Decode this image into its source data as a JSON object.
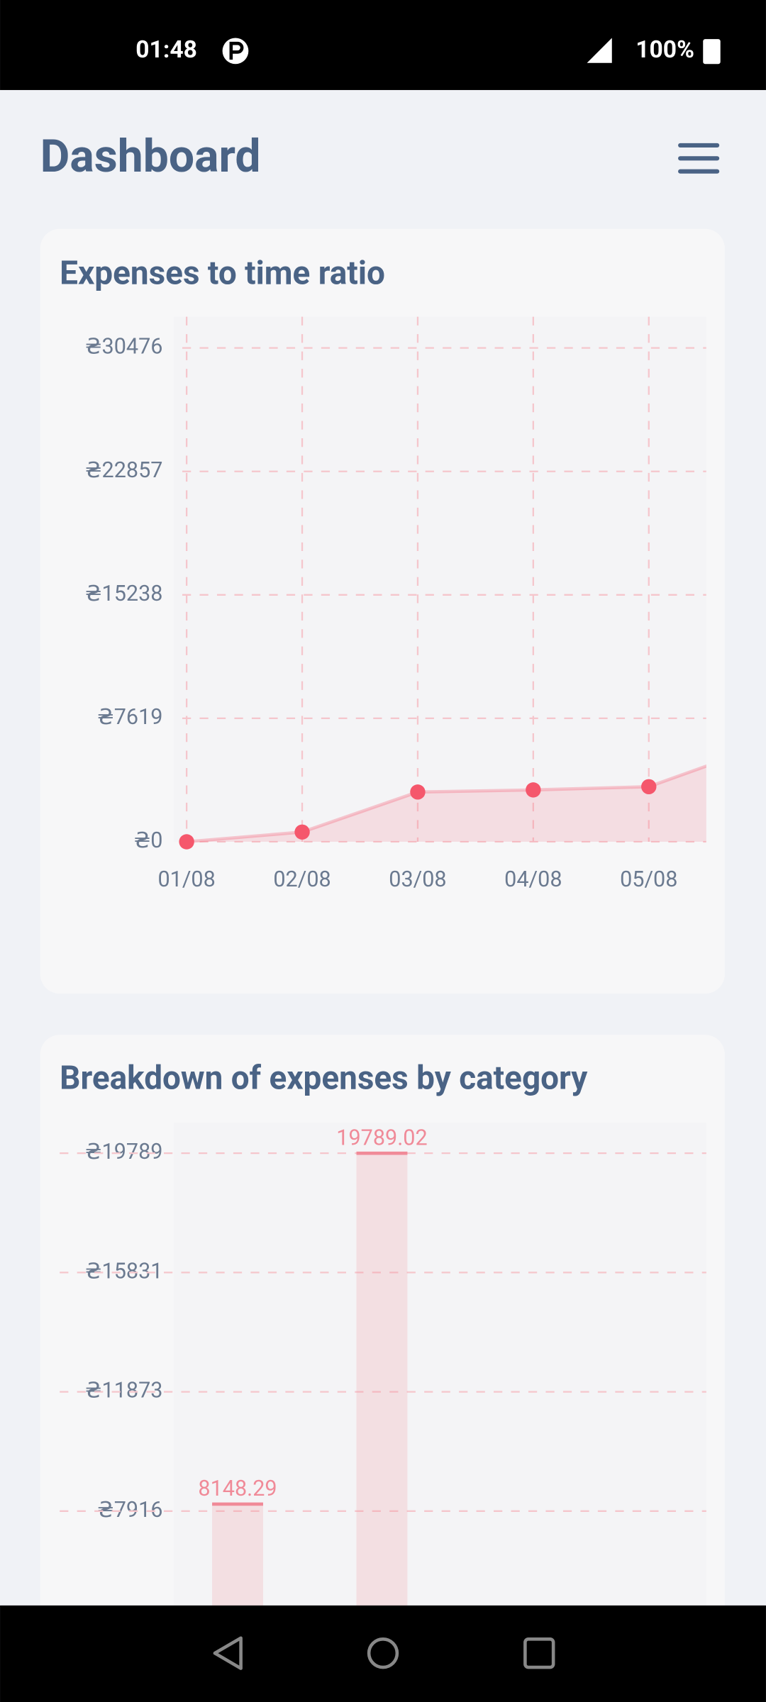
{
  "status_bar": {
    "time": "01:48",
    "battery": "100%"
  },
  "header": {
    "title": "Dashboard"
  },
  "cards": [
    {
      "title": "Expenses to time ratio",
      "chart": {
        "type": "line",
        "categories": [
          "01/08",
          "02/08",
          "03/08",
          "04/08",
          "05/08",
          null
        ],
        "values": [
          0,
          600,
          3070,
          3200,
          3400,
          5950
        ],
        "color": "#f5576c",
        "ylim": [
          0,
          32400
        ],
        "yticks": [
          {
            "value": 0,
            "label": "₴0"
          },
          {
            "value": 7619,
            "label": "₴7619"
          },
          {
            "value": 15238,
            "label": "₴15238"
          },
          {
            "value": 22857,
            "label": "₴22857"
          },
          {
            "value": 30476,
            "label": "₴30476"
          }
        ],
        "grid": true
      }
    },
    {
      "title": "Breakdown of expenses by category",
      "chart": {
        "type": "bar",
        "categories": [
          null,
          null
        ],
        "values": [
          8148.29,
          19789.02
        ],
        "color": "#f08a98",
        "ylim": [
          0,
          20800
        ],
        "yticks": [
          {
            "value": 7916,
            "label": "₴7916"
          },
          {
            "value": 11873,
            "label": "₴11873"
          },
          {
            "value": 15831,
            "label": "₴15831"
          },
          {
            "value": 19789,
            "label": "₴19789"
          }
        ],
        "grid": true
      }
    }
  ]
}
